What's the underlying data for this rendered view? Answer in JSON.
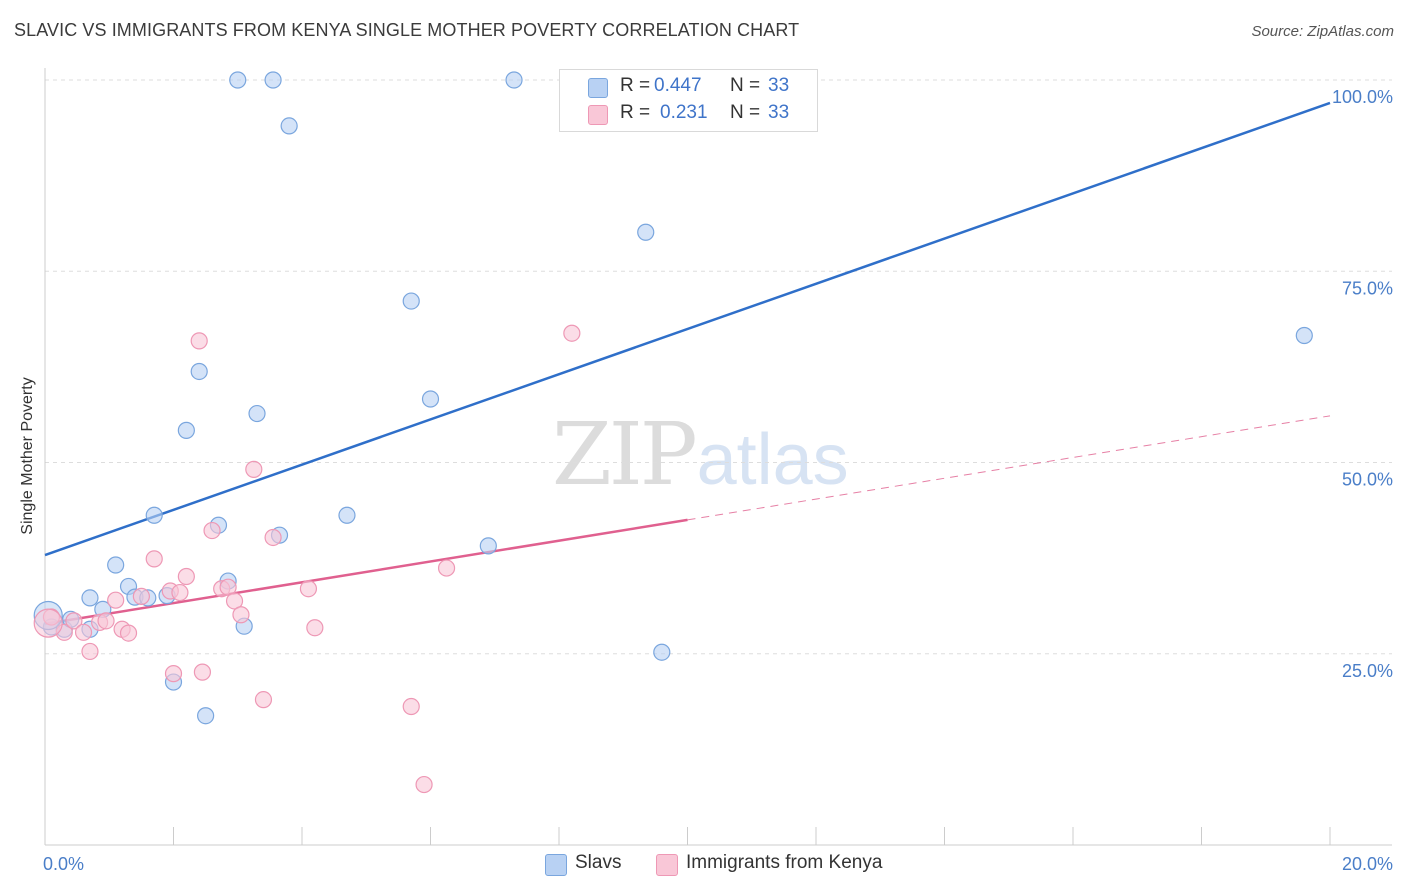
{
  "title": "SLAVIC VS IMMIGRANTS FROM KENYA SINGLE MOTHER POVERTY CORRELATION CHART",
  "source": "Source: ZipAtlas.com",
  "watermark": {
    "zip": "ZIP",
    "atlas": "atlas"
  },
  "colors": {
    "slavs_fill": "#b8d1f3",
    "slavs_stroke": "#7aa6de",
    "slavs_line": "#2f6fc9",
    "kenya_fill": "#f9c7d7",
    "kenya_stroke": "#ee98b5",
    "kenya_line": "#e0608f",
    "tick_label": "#4a7ec8",
    "grid": "#dddddd"
  },
  "legend": {
    "rows": [
      {
        "r_label": "R =",
        "r_value": "0.447",
        "n_label": "N =",
        "n_value": "33"
      },
      {
        "r_label": "R =",
        "r_value": "0.231",
        "n_label": "N =",
        "n_value": "33"
      }
    ]
  },
  "bottom_legend": {
    "slavs": "Slavs",
    "kenya": "Immigrants from Kenya"
  },
  "chart_data": {
    "type": "scatter",
    "title": "SLAVIC VS IMMIGRANTS FROM KENYA SINGLE MOTHER POVERTY CORRELATION CHART",
    "xlabel": "",
    "ylabel": "Single Mother Poverty",
    "xlim": [
      0,
      20
    ],
    "ylim": [
      0,
      103.5
    ],
    "x_tick_labels": [
      "0.0%",
      "20.0%"
    ],
    "y_ticks": [
      25,
      50,
      75,
      100
    ],
    "y_tick_labels": [
      "25.0%",
      "50.0%",
      "75.0%",
      "100.0%"
    ],
    "grid": "horizontal dashed",
    "legend_placement": "top-center and bottom-center",
    "series": [
      {
        "name": "Slavs",
        "r": 0.447,
        "n": 33,
        "trend": {
          "x": [
            0,
            20
          ],
          "y": [
            37.9,
            97
          ]
        },
        "points": [
          [
            0.1,
            28.5
          ],
          [
            0.3,
            28.2
          ],
          [
            0.4,
            29.5
          ],
          [
            0.7,
            28.2
          ],
          [
            0.7,
            32.3
          ],
          [
            0.9,
            30.8
          ],
          [
            1.1,
            36.6
          ],
          [
            1.3,
            33.8
          ],
          [
            1.4,
            32.4
          ],
          [
            1.6,
            32.3
          ],
          [
            1.7,
            43.1
          ],
          [
            1.9,
            32.6
          ],
          [
            2.0,
            21.3
          ],
          [
            2.2,
            54.2
          ],
          [
            2.4,
            61.9
          ],
          [
            2.5,
            16.9
          ],
          [
            2.7,
            41.8
          ],
          [
            2.85,
            34.5
          ],
          [
            3.0,
            100
          ],
          [
            3.1,
            28.6
          ],
          [
            3.3,
            56.4
          ],
          [
            3.55,
            100
          ],
          [
            3.65,
            40.5
          ],
          [
            3.8,
            94
          ],
          [
            4.7,
            43.1
          ],
          [
            5.7,
            71.1
          ],
          [
            6.0,
            58.3
          ],
          [
            6.9,
            39.1
          ],
          [
            7.3,
            100
          ],
          [
            9.35,
            80.1
          ],
          [
            9.6,
            25.2
          ],
          [
            19.6,
            66.6
          ],
          [
            0.05,
            30.0
          ]
        ]
      },
      {
        "name": "Immigrants from Kenya",
        "r": 0.231,
        "n": 33,
        "trend": {
          "x": [
            0,
            10
          ],
          "y": [
            28.9,
            42.5
          ],
          "dashed_to": {
            "x": 20,
            "y": 56.1
          }
        },
        "points": [
          [
            0.1,
            29.8
          ],
          [
            0.3,
            27.8
          ],
          [
            0.45,
            29.3
          ],
          [
            0.6,
            27.8
          ],
          [
            0.7,
            25.3
          ],
          [
            0.85,
            29.1
          ],
          [
            0.95,
            29.3
          ],
          [
            1.1,
            32.0
          ],
          [
            1.2,
            28.2
          ],
          [
            1.3,
            27.7
          ],
          [
            1.5,
            32.5
          ],
          [
            1.7,
            37.4
          ],
          [
            1.95,
            33.2
          ],
          [
            2.0,
            22.4
          ],
          [
            2.1,
            33.0
          ],
          [
            2.2,
            35.1
          ],
          [
            2.4,
            65.9
          ],
          [
            2.45,
            22.6
          ],
          [
            2.6,
            41.1
          ],
          [
            2.75,
            33.5
          ],
          [
            2.85,
            33.7
          ],
          [
            2.95,
            31.9
          ],
          [
            3.05,
            30.1
          ],
          [
            3.25,
            49.1
          ],
          [
            3.4,
            19.0
          ],
          [
            3.55,
            40.2
          ],
          [
            4.1,
            33.5
          ],
          [
            4.2,
            28.4
          ],
          [
            5.7,
            18.1
          ],
          [
            5.9,
            7.9
          ],
          [
            6.25,
            36.2
          ],
          [
            8.2,
            66.9
          ],
          [
            0.05,
            29.0
          ]
        ]
      }
    ]
  }
}
